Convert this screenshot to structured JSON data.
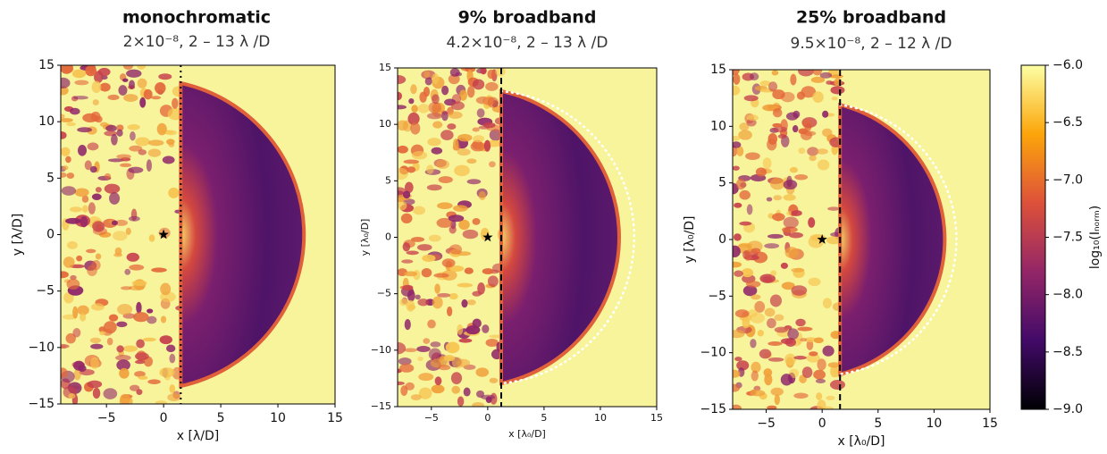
{
  "chart_data": [
    {
      "type": "image",
      "title": "monochromatic",
      "subtitle": "2×10⁻⁸, 2 – 13 λ /D",
      "x_label": "x [λ/D]",
      "y_label": "y [λ/D]",
      "xlim": [
        -9,
        15
      ],
      "ylim": [
        -15,
        15
      ],
      "xticks": [
        {
          "value": -5,
          "label": "−5"
        },
        0,
        5,
        10,
        15
      ],
      "yticks": [
        {
          "value": -15,
          "label": "−15"
        },
        {
          "value": -10,
          "label": "−10"
        },
        {
          "value": -5,
          "label": "−5"
        },
        0,
        5,
        10,
        15
      ],
      "divider_x": 1.5,
      "divider_style": "dotted",
      "dark_hole_radius": 13.5,
      "outline": false
    },
    {
      "type": "image",
      "title": "9% broadband",
      "subtitle": "4.2×10⁻⁸, 2 – 13 λ /D",
      "x_label": "x [λ₀/D]",
      "y_label": "y [λ₀/D]",
      "xlim": [
        -8,
        15
      ],
      "ylim": [
        -15,
        15
      ],
      "xticks": [
        {
          "value": -5,
          "label": "−5"
        },
        0,
        5,
        10,
        15
      ],
      "yticks": [
        {
          "value": -15,
          "label": "−15"
        },
        {
          "value": -10,
          "label": "−10"
        },
        {
          "value": -5,
          "label": "−5"
        },
        0,
        5,
        10,
        15
      ],
      "divider_x": 1.2,
      "divider_style": "dashed",
      "dark_hole_radius": 13,
      "outline": true
    },
    {
      "type": "image",
      "title": "25% broadband",
      "subtitle": "9.5×10⁻⁸, 2 – 12 λ /D",
      "x_label": "x [λ₀/D]",
      "y_label": "y [λ₀/D]",
      "xlim": [
        -8,
        15
      ],
      "ylim": [
        -15,
        15
      ],
      "xticks": [
        {
          "value": -5,
          "label": "−5"
        },
        0,
        5,
        10,
        15
      ],
      "yticks": [
        {
          "value": -15,
          "label": "−15"
        },
        {
          "value": -10,
          "label": "−10"
        },
        {
          "value": -5,
          "label": "−5"
        },
        0,
        5,
        10,
        15
      ],
      "divider_x": 1.6,
      "divider_style": "dashed",
      "dark_hole_radius": 12,
      "outline": true,
      "colorbar": {
        "label": "log₁₀(Iₙₒᵣₘ)",
        "lim": [
          -9,
          -6
        ],
        "ticks": [
          {
            "value": -6,
            "label": "−6.0"
          },
          {
            "value": -6.5,
            "label": "−6.5"
          },
          {
            "value": -7,
            "label": "−7.0"
          },
          {
            "value": -7.5,
            "label": "−7.5"
          },
          {
            "value": -8,
            "label": "−8.0"
          },
          {
            "value": -8.5,
            "label": "−8.5"
          },
          {
            "value": -9,
            "label": "−9.0"
          }
        ]
      }
    }
  ]
}
